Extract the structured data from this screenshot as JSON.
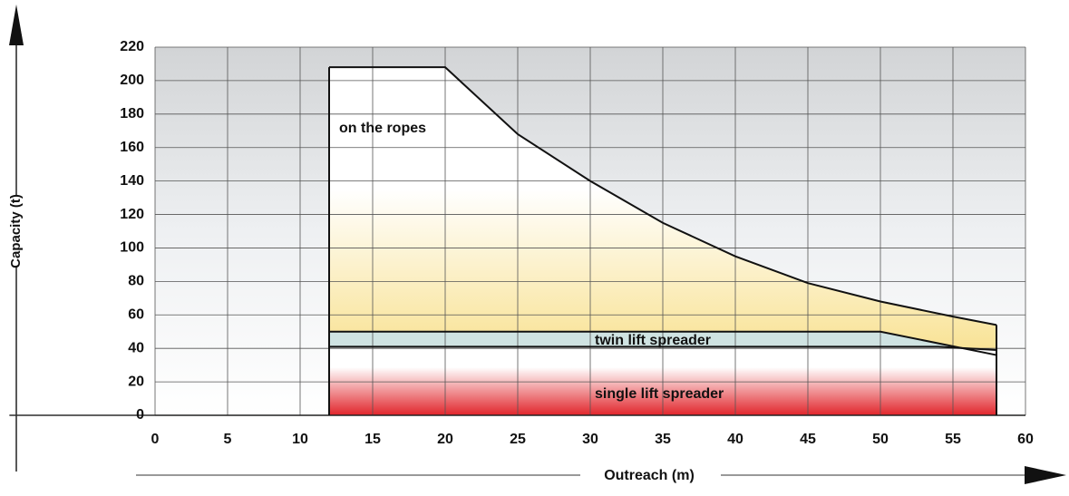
{
  "chart_data": {
    "type": "area",
    "x_label": "Outreach (m)",
    "y_label": "Capacity (t)",
    "xlim": [
      0,
      60
    ],
    "xticks": [
      0,
      5,
      10,
      15,
      20,
      25,
      30,
      35,
      40,
      45,
      50,
      55,
      60
    ],
    "ylim": [
      0,
      220
    ],
    "yticks": [
      0,
      20,
      40,
      60,
      80,
      100,
      120,
      140,
      160,
      180,
      200,
      220
    ],
    "grid": true,
    "series": [
      {
        "name": "on the ropes",
        "color": "#f6d76a",
        "x": [
          12,
          20,
          25,
          30,
          35,
          40,
          45,
          50,
          55,
          58
        ],
        "values": [
          208,
          208,
          168,
          140,
          115,
          95,
          79,
          68,
          59,
          54
        ]
      },
      {
        "name": "twin lift spreader",
        "color": "#cfe3e2",
        "x": [
          12,
          50,
          58
        ],
        "values": [
          50,
          50,
          36
        ]
      },
      {
        "name": "single lift spreader",
        "color": "#e1252b",
        "x": [
          12,
          54,
          58
        ],
        "values": [
          41,
          41,
          39
        ]
      }
    ]
  }
}
